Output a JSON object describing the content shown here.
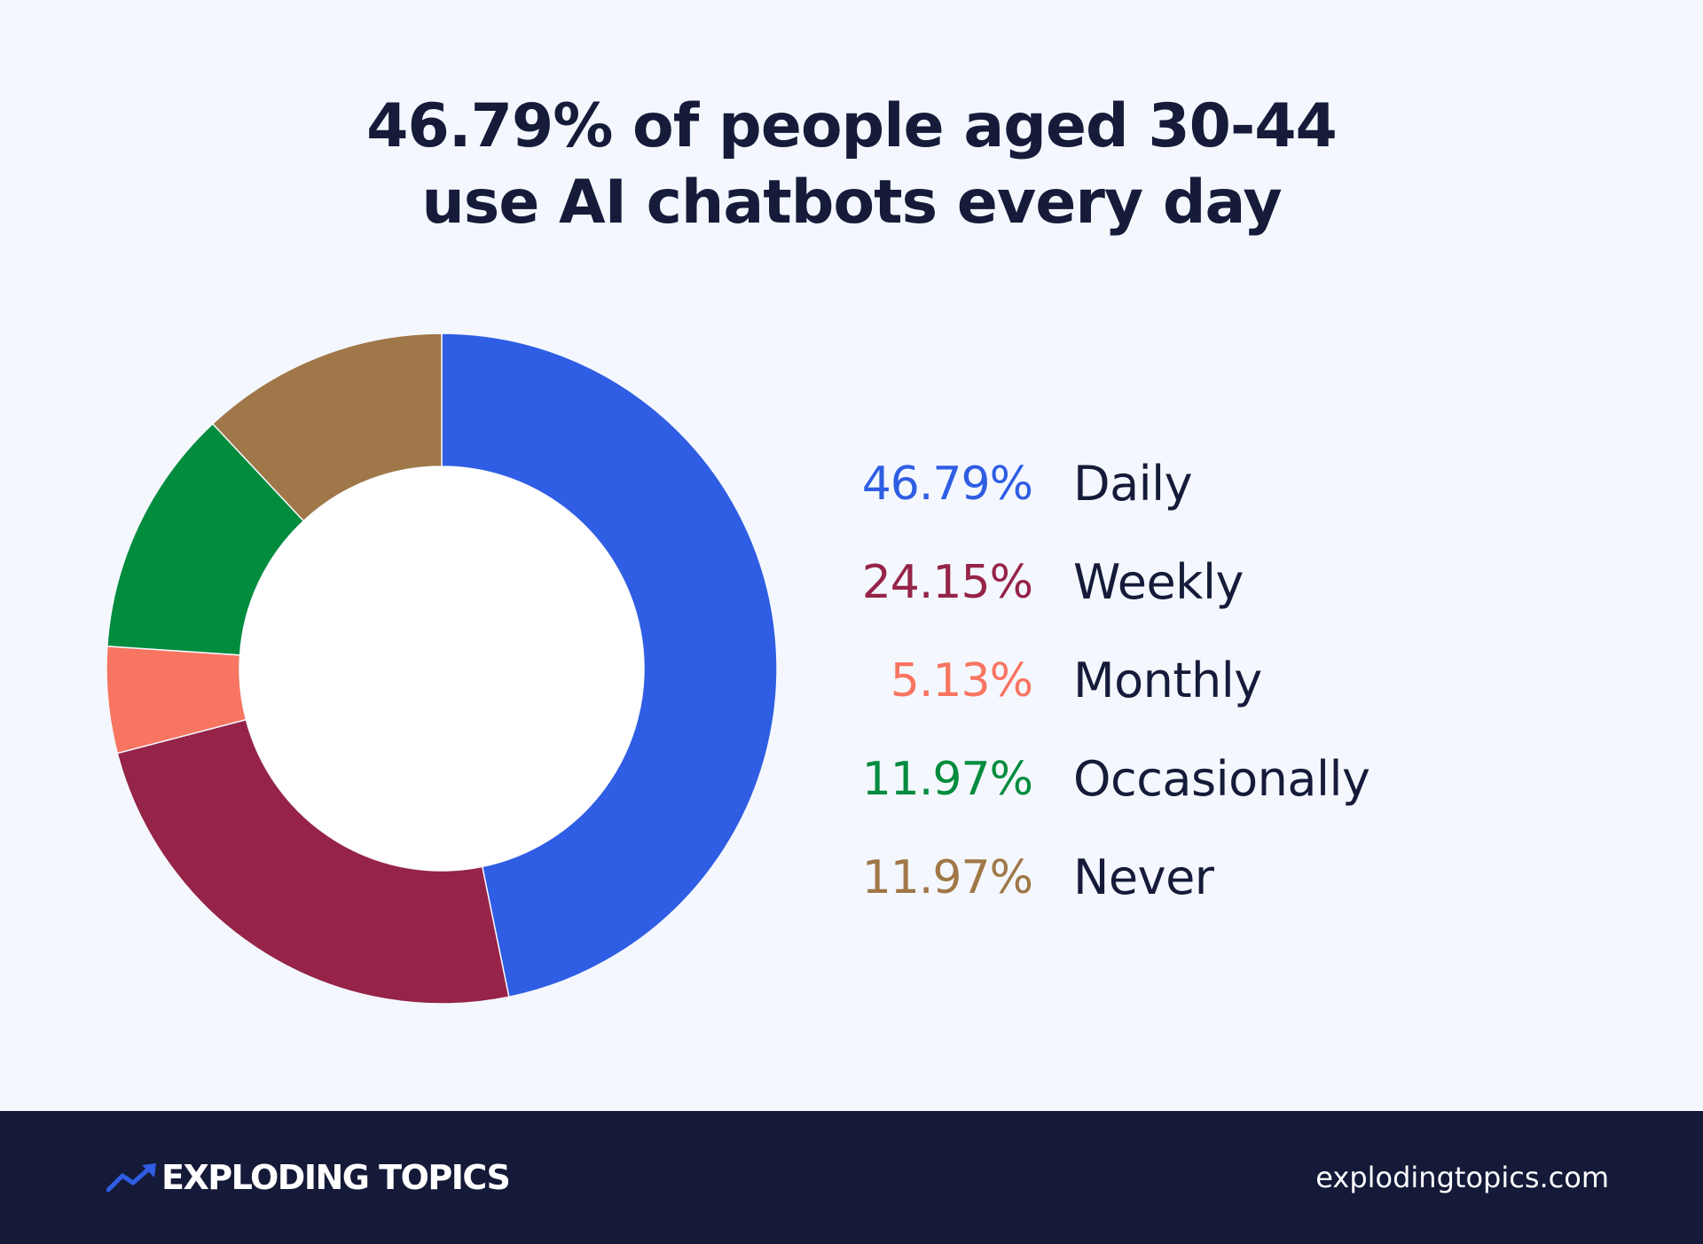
{
  "title_lines": [
    "46.79% of people aged 30-44",
    "use AI chatbots every day"
  ],
  "chart_data": {
    "type": "pie",
    "title": "46.79% of people aged 30-44 use AI chatbots every day",
    "categories": [
      "Daily",
      "Weekly",
      "Monthly",
      "Occasionally",
      "Never"
    ],
    "values": [
      46.79,
      24.15,
      5.13,
      11.97,
      11.97
    ],
    "value_labels": [
      "46.79%",
      "24.15%",
      "5.13%",
      "11.97%",
      "11.97%"
    ],
    "colors": [
      "#2f5de3",
      "#962348",
      "#f87562",
      "#028c3e",
      "#a07748"
    ],
    "donut": true,
    "legend_placement": "right"
  },
  "footer": {
    "brand": "EXPLODING TOPICS",
    "site": "explodingtopics.com",
    "brand_icon": "trend-arrow-icon",
    "brand_icon_color": "#2f5de3",
    "background": "#141a38"
  }
}
